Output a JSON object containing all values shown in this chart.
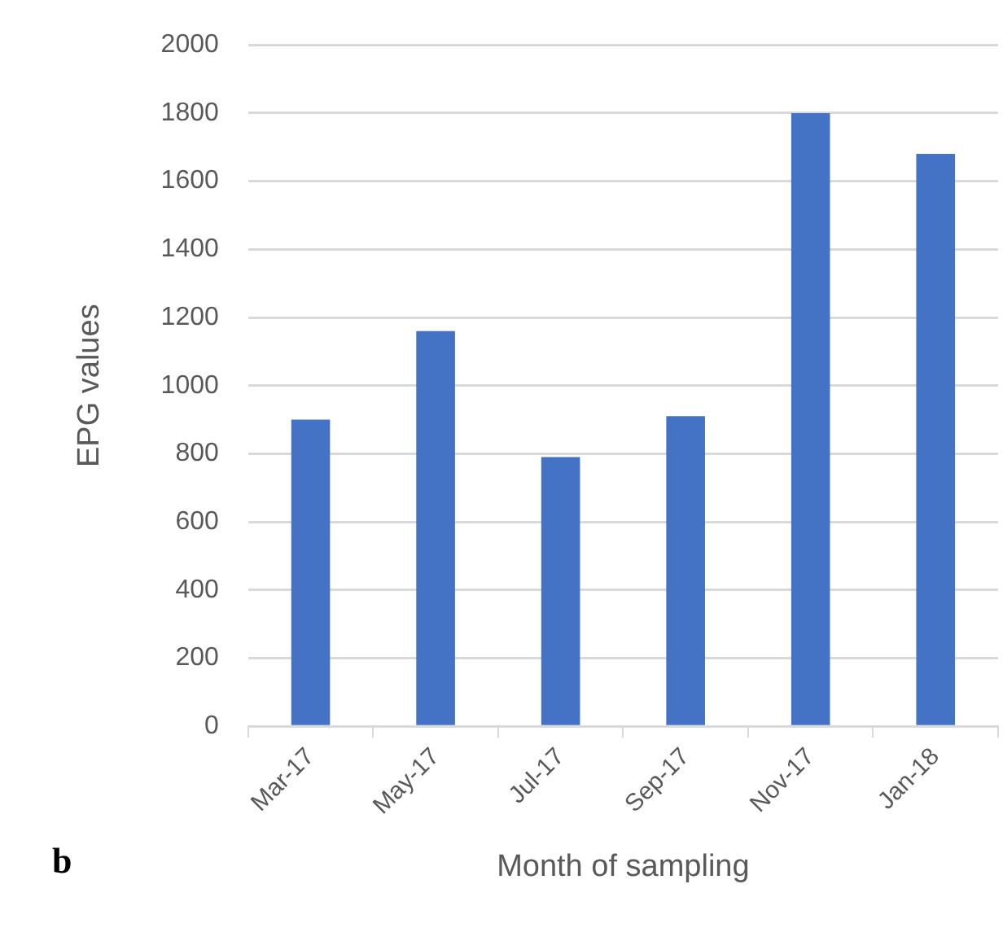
{
  "chart_data": {
    "type": "bar",
    "xlabel": "Month of sampling",
    "ylabel": "EPG values",
    "annotations": [
      "b"
    ],
    "categories": [
      "Mar-17",
      "May-17",
      "Jul-17",
      "Sep-17",
      "Nov-17",
      "Jan-18"
    ],
    "values": [
      900,
      1160,
      790,
      910,
      1800,
      1680
    ],
    "color": "#4472c4",
    "ylim": [
      0,
      2000
    ],
    "yticks": [
      0,
      200,
      400,
      600,
      800,
      1000,
      1200,
      1400,
      1600,
      1800,
      2000
    ],
    "grid": "y",
    "legend": false
  }
}
